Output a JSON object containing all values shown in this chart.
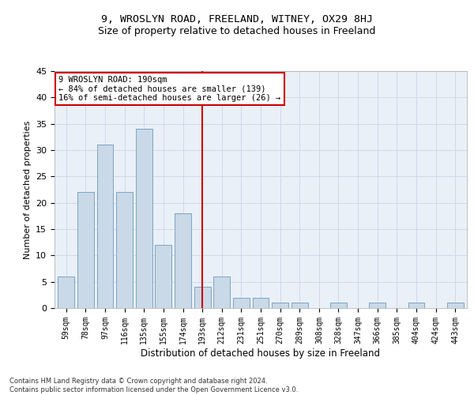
{
  "title": "9, WROSLYN ROAD, FREELAND, WITNEY, OX29 8HJ",
  "subtitle": "Size of property relative to detached houses in Freeland",
  "xlabel": "Distribution of detached houses by size in Freeland",
  "ylabel": "Number of detached properties",
  "categories": [
    "59sqm",
    "78sqm",
    "97sqm",
    "116sqm",
    "135sqm",
    "155sqm",
    "174sqm",
    "193sqm",
    "212sqm",
    "231sqm",
    "251sqm",
    "270sqm",
    "289sqm",
    "308sqm",
    "328sqm",
    "347sqm",
    "366sqm",
    "385sqm",
    "404sqm",
    "424sqm",
    "443sqm"
  ],
  "values": [
    6,
    22,
    31,
    22,
    34,
    12,
    18,
    4,
    6,
    2,
    2,
    1,
    1,
    0,
    1,
    0,
    1,
    0,
    1,
    0,
    1
  ],
  "bar_color": "#c9d9e8",
  "bar_edge_color": "#5a8ab0",
  "highlight_index": 7,
  "property_label": "9 WROSLYN ROAD: 190sqm",
  "annotation_line1": "← 84% of detached houses are smaller (139)",
  "annotation_line2": "16% of semi-detached houses are larger (26) →",
  "annotation_box_color": "#ffffff",
  "annotation_box_edge_color": "#cc0000",
  "vline_color": "#cc0000",
  "ylim": [
    0,
    45
  ],
  "yticks": [
    0,
    5,
    10,
    15,
    20,
    25,
    30,
    35,
    40,
    45
  ],
  "grid_color": "#d0d8e8",
  "bg_color": "#eaf0f8",
  "footer_line1": "Contains HM Land Registry data © Crown copyright and database right 2024.",
  "footer_line2": "Contains public sector information licensed under the Open Government Licence v3.0.",
  "title_fontsize": 9.5,
  "subtitle_fontsize": 9,
  "xlabel_fontsize": 8.5,
  "ylabel_fontsize": 8,
  "tick_fontsize": 7,
  "annotation_fontsize": 7.5
}
